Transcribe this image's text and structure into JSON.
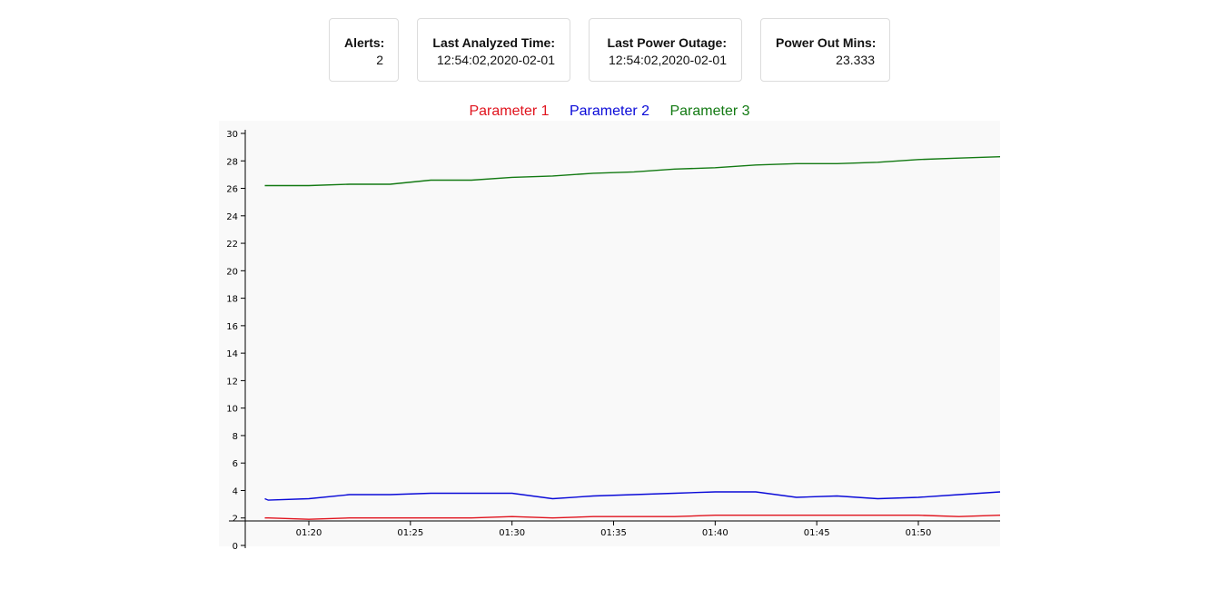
{
  "stats": {
    "alerts": {
      "label": "Alerts:",
      "value": "2"
    },
    "last_analyzed": {
      "label": "Last Analyzed Time:",
      "value": "12:54:02,2020-02-01"
    },
    "last_outage": {
      "label": "Last Power Outage:",
      "value": "12:54:02,2020-02-01"
    },
    "power_out_mins": {
      "label": "Power Out Mins:",
      "value": "23.333"
    }
  },
  "colors": {
    "parameter_1": "#e0141e",
    "parameter_2": "#0a0ad8",
    "parameter_3": "#137a13",
    "plot_background": "#f9f9f9",
    "axis": "#000000"
  },
  "chart_data": {
    "type": "line",
    "title": "",
    "xlabel": "",
    "ylabel": "",
    "legend_position": "top-center",
    "grid": false,
    "xlim": [
      "01:17:50",
      "01:54:30"
    ],
    "ylim": [
      0,
      30
    ],
    "x_ticks": [
      "01:20",
      "01:25",
      "01:30",
      "01:35",
      "01:40",
      "01:45",
      "01:50"
    ],
    "y_ticks": [
      0,
      2,
      4,
      6,
      8,
      10,
      12,
      14,
      16,
      18,
      20,
      22,
      24,
      26,
      28,
      30
    ],
    "x": [
      "01:17:50",
      "01:18:00",
      "01:20:00",
      "01:22:00",
      "01:24:00",
      "01:26:00",
      "01:28:00",
      "01:30:00",
      "01:32:00",
      "01:34:00",
      "01:36:00",
      "01:38:00",
      "01:40:00",
      "01:42:00",
      "01:44:00",
      "01:46:00",
      "01:48:00",
      "01:50:00",
      "01:52:00",
      "01:54:30"
    ],
    "series": [
      {
        "name": "Parameter 1",
        "color": "#e0141e",
        "values": [
          2.0,
          2.0,
          1.9,
          2.0,
          2.0,
          2.0,
          2.0,
          2.1,
          2.0,
          2.1,
          2.1,
          2.1,
          2.2,
          2.2,
          2.2,
          2.2,
          2.2,
          2.2,
          2.1,
          2.2
        ]
      },
      {
        "name": "Parameter 2",
        "color": "#0a0ad8",
        "values": [
          3.4,
          3.3,
          3.4,
          3.7,
          3.7,
          3.8,
          3.8,
          3.8,
          3.4,
          3.6,
          3.7,
          3.8,
          3.9,
          3.9,
          3.5,
          3.6,
          3.4,
          3.5,
          3.7,
          3.9
        ]
      },
      {
        "name": "Parameter 3",
        "color": "#137a13",
        "values": [
          26.2,
          26.2,
          26.2,
          26.3,
          26.3,
          26.6,
          26.6,
          26.8,
          26.9,
          27.1,
          27.2,
          27.4,
          27.5,
          27.7,
          27.8,
          27.8,
          27.9,
          28.1,
          28.2,
          28.3
        ]
      }
    ]
  }
}
